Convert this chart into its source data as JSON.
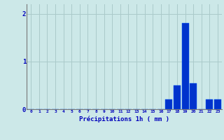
{
  "hours": [
    0,
    1,
    2,
    3,
    4,
    5,
    6,
    7,
    8,
    9,
    10,
    11,
    12,
    13,
    14,
    15,
    16,
    17,
    18,
    19,
    20,
    21,
    22,
    23
  ],
  "values": [
    0,
    0,
    0,
    0,
    0,
    0,
    0,
    0,
    0,
    0,
    0,
    0,
    0,
    0,
    0,
    0,
    0,
    0.2,
    0.5,
    1.8,
    0.55,
    0,
    0.2,
    0.2
  ],
  "bar_color": "#0033cc",
  "bar_edge_color": "#0055ff",
  "xlabel": "Précipitations 1h ( mm )",
  "xlabel_color": "#0000bb",
  "tick_color": "#0000bb",
  "bg_color": "#cce8e8",
  "grid_color": "#aacaca",
  "ylim": [
    0,
    2.2
  ],
  "yticks": [
    0,
    1,
    2
  ],
  "figsize": [
    3.2,
    2.0
  ],
  "dpi": 100
}
